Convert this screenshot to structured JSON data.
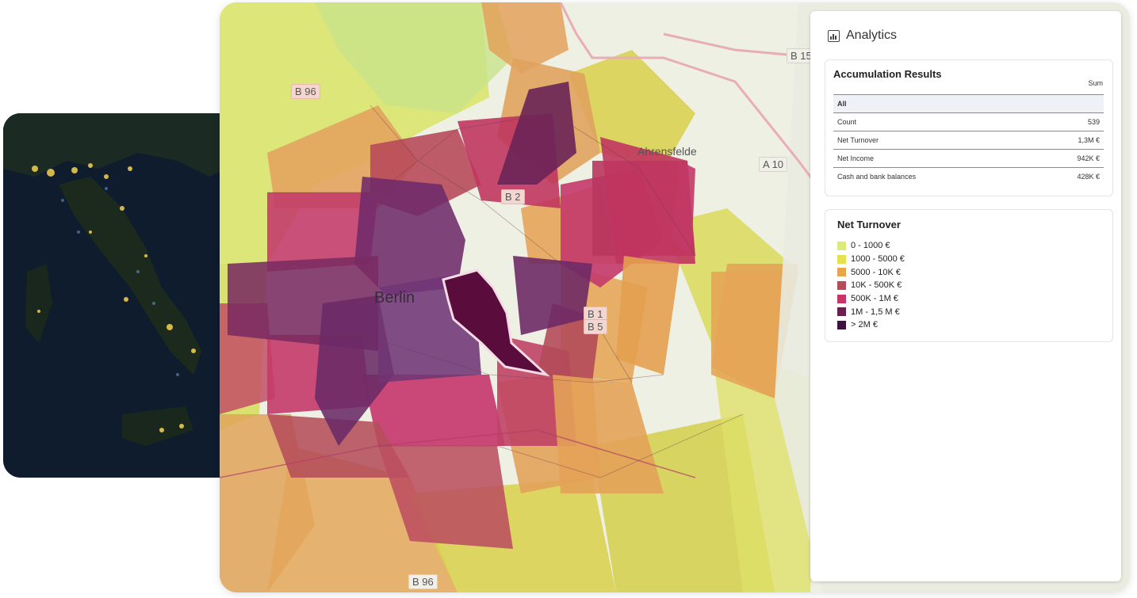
{
  "map": {
    "city": "Berlin",
    "places": [
      {
        "key": "ahrensfelde",
        "label": "Ahrensfelde"
      }
    ],
    "roads": [
      {
        "key": "b15",
        "label": "B 15"
      },
      {
        "key": "a10",
        "label": "A 10"
      },
      {
        "key": "b96",
        "label": "B 96"
      },
      {
        "key": "b96_south",
        "label": "B 96"
      },
      {
        "key": "b2",
        "label": "B 2"
      },
      {
        "key": "b1",
        "label": "B 1"
      },
      {
        "key": "b5",
        "label": "B 5"
      }
    ]
  },
  "panel": {
    "title": "Analytics",
    "icon": "bar-chart-icon",
    "results": {
      "title": "Accumulation Results",
      "column": "Sum",
      "group": "All",
      "rows": [
        {
          "label": "Count",
          "value": "539"
        },
        {
          "label": "Net Turnover",
          "value": "1,3M €"
        },
        {
          "label": "Net Income",
          "value": "942K €"
        },
        {
          "label": "Cash and bank balances",
          "value": "428K €"
        }
      ]
    },
    "legend": {
      "title": "Net Turnover",
      "items": [
        {
          "label": "0 - 1000 €",
          "color": "#d9ec7a"
        },
        {
          "label": "1000 - 5000 €",
          "color": "#e3e34f"
        },
        {
          "label": "5000 - 10K €",
          "color": "#e9a450"
        },
        {
          "label": "10K - 500K €",
          "color": "#b54b59"
        },
        {
          "label": "500K - 1M €",
          "color": "#c93466"
        },
        {
          "label": "1M - 1,5 M €",
          "color": "#6b1f4d"
        },
        {
          "label": "> 2M €",
          "color": "#3f1040"
        }
      ]
    }
  }
}
